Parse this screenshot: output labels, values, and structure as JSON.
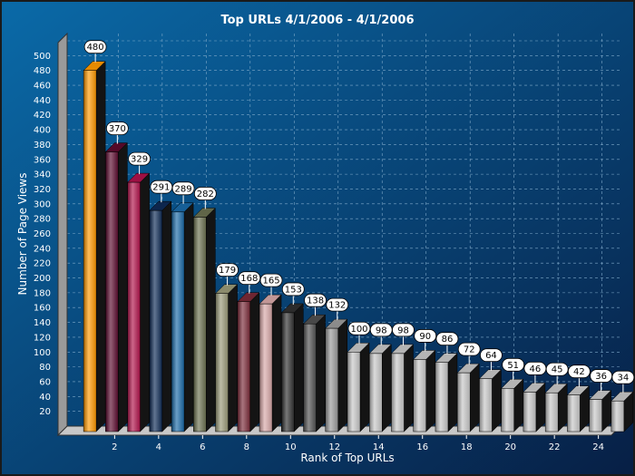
{
  "chart_data": {
    "type": "bar",
    "title": "Top URLs 4/1/2006  - 4/1/2006",
    "xlabel": "Rank of Top URLs",
    "ylabel": "Number of Page Views",
    "ylim": [
      0,
      520
    ],
    "y_ticks": [
      20,
      40,
      60,
      80,
      100,
      120,
      140,
      160,
      180,
      200,
      220,
      240,
      260,
      280,
      300,
      320,
      340,
      360,
      380,
      400,
      420,
      440,
      460,
      480,
      500
    ],
    "x_ticks": [
      2,
      4,
      6,
      8,
      10,
      12,
      14,
      16,
      18,
      20,
      22,
      24
    ],
    "categories": [
      1,
      2,
      3,
      4,
      5,
      6,
      7,
      8,
      9,
      10,
      11,
      12,
      13,
      14,
      15,
      16,
      17,
      18,
      19,
      20,
      21,
      22,
      23,
      24,
      25
    ],
    "values": [
      480,
      370,
      329,
      291,
      289,
      282,
      179,
      168,
      165,
      153,
      138,
      132,
      100,
      98,
      98,
      90,
      86,
      72,
      64,
      51,
      46,
      45,
      42,
      36,
      34
    ],
    "grid": true,
    "legend": "none",
    "colors": {
      "background_light": "#0a6aa8",
      "background_dark": "#071f45",
      "bars": [
        "#ff9900",
        "#5c0a2e",
        "#b0124a",
        "#0e2a55",
        "#1a6aa8",
        "#6b7050",
        "#9a9a78",
        "#7a2a38",
        "#d8a8a8",
        "#303030",
        "#505050",
        "#9a9a9a",
        "#c8c8c8",
        "#c8c8c8",
        "#c8c8c8",
        "#c8c8c8",
        "#c8c8c8",
        "#c8c8c8",
        "#c8c8c8",
        "#c8c8c8",
        "#c8c8c8",
        "#c8c8c8",
        "#c8c8c8",
        "#c8c8c8",
        "#c8c8c8"
      ]
    }
  }
}
